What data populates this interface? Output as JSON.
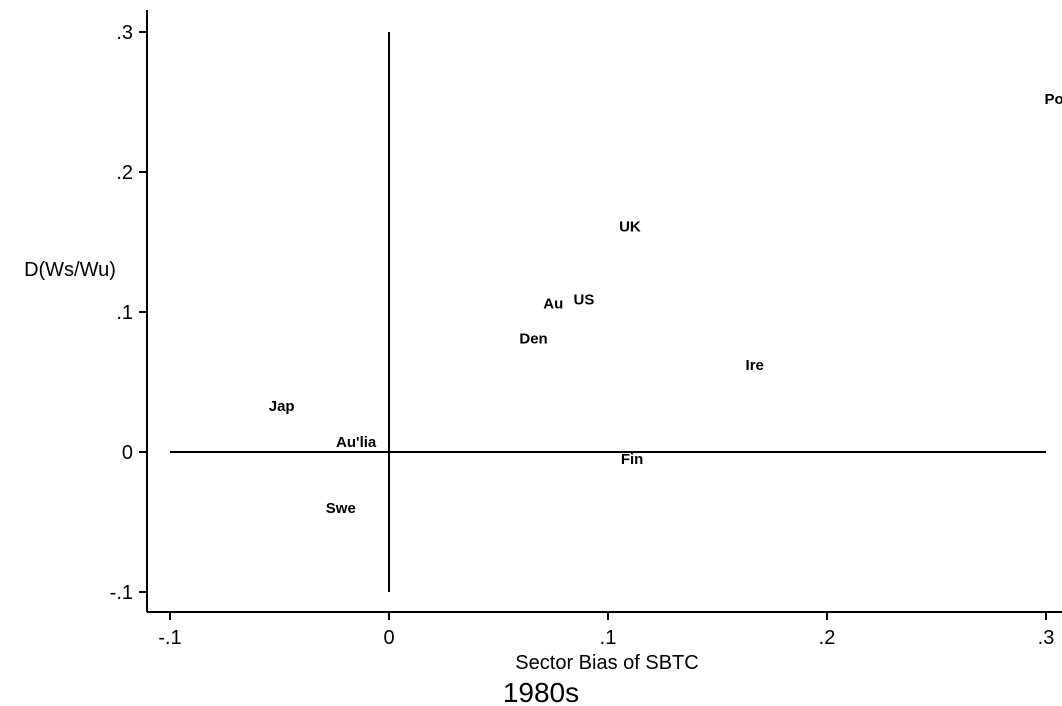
{
  "chart_data": {
    "type": "scatter",
    "title": "",
    "caption": "1980s",
    "xlabel": "Sector Bias of SBTC",
    "ylabel": "D(Ws/Wu)",
    "xlim": [
      -0.1,
      0.3
    ],
    "ylim": [
      -0.1,
      0.3
    ],
    "x_ticks": [
      -0.1,
      0,
      0.1,
      0.2,
      0.3
    ],
    "x_tick_labels": [
      "-.1",
      "0",
      ".1",
      ".2",
      ".3"
    ],
    "y_ticks": [
      -0.1,
      0,
      0.1,
      0.2,
      0.3
    ],
    "y_tick_labels": [
      "-.1",
      "0",
      ".1",
      ".2",
      ".3"
    ],
    "reference_lines": {
      "x": 0,
      "y": 0
    },
    "grid": false,
    "points": [
      {
        "label": "Por",
        "x": 0.305,
        "y": 0.252
      },
      {
        "label": "UK",
        "x": 0.11,
        "y": 0.161
      },
      {
        "label": "US",
        "x": 0.089,
        "y": 0.109
      },
      {
        "label": "Au",
        "x": 0.075,
        "y": 0.106
      },
      {
        "label": "Den",
        "x": 0.066,
        "y": 0.081
      },
      {
        "label": "Ire",
        "x": 0.167,
        "y": 0.062
      },
      {
        "label": "Jap",
        "x": -0.049,
        "y": 0.033
      },
      {
        "label": "Au'lia",
        "x": -0.015,
        "y": 0.007
      },
      {
        "label": "Fin",
        "x": 0.111,
        "y": -0.005
      },
      {
        "label": "Swe",
        "x": -0.022,
        "y": -0.04
      }
    ]
  }
}
